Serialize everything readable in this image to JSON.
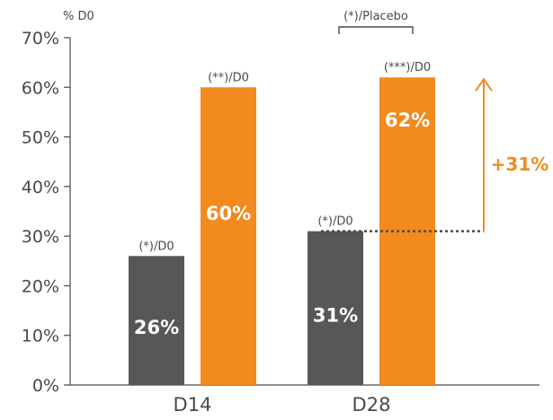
{
  "chart_data": {
    "type": "bar",
    "y_unit_label": "% D0",
    "categories": [
      "D14",
      "D28"
    ],
    "series": [
      {
        "values": [
          26,
          31
        ],
        "color": "#555759",
        "data_labels": [
          "26%",
          "31%"
        ],
        "significance_labels": [
          "(*)/D0",
          "(*)/D0"
        ]
      },
      {
        "values": [
          60,
          62
        ],
        "color": "#f28a1e",
        "data_labels": [
          "60%",
          "62%"
        ],
        "significance_labels": [
          "(**)/D0",
          "(***)/D0"
        ]
      }
    ],
    "ylim": [
      0,
      70
    ],
    "y_ticks": [
      "0%",
      "10%",
      "20%",
      "30%",
      "40%",
      "50%",
      "60%",
      "70%"
    ],
    "y_tick_values": [
      0,
      10,
      20,
      30,
      40,
      50,
      60,
      70
    ],
    "grid": false,
    "annotations": {
      "bracket_label": "(*)/Placebo",
      "delta_label": "+31%",
      "delta_color": "#f28a1e",
      "dotted_line_color": "#4a4a4a"
    }
  }
}
